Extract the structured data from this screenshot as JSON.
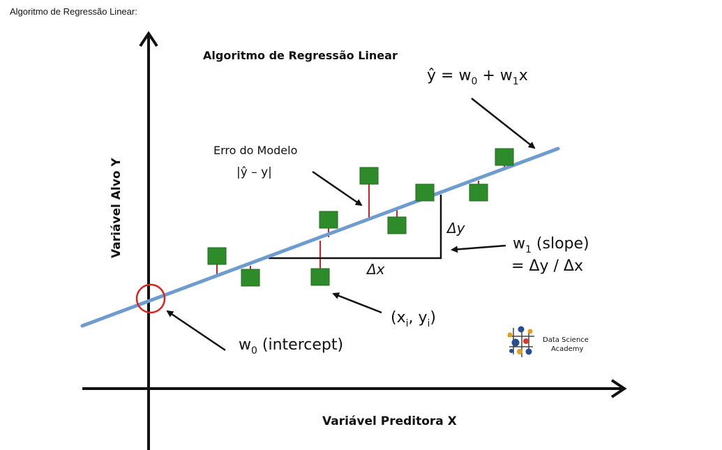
{
  "page_caption": "Algoritmo de Regressão Linear:",
  "diagram": {
    "title": "Algoritmo de Regressão Linear",
    "equation": {
      "yhat": "ŷ",
      "eq": " = w",
      "s0": "0",
      "plus": " + w",
      "s1": "1",
      "x": "x"
    },
    "x_axis_label": "Variável Preditora X",
    "y_axis_label": "Variável Alvo Y",
    "error_label": "Erro do Modelo",
    "error_formula": "|ŷ – y|",
    "delta_y": "Δy",
    "delta_x": "Δx",
    "slope_label": {
      "w": "w",
      "sub": "1",
      "rest": " (slope)",
      "line2": "= Δy / Δx"
    },
    "intercept_label": {
      "w": "w",
      "sub": "0",
      "rest": " (intercept)"
    },
    "point_label": {
      "open": "(x",
      "sub_i": "i",
      "mid": ", y",
      "sub_j": "i",
      "close": ")"
    },
    "logo_line1": "Data Science",
    "logo_line2": "Academy",
    "colors": {
      "line": "#6f9ccf",
      "point": "#2e8b2a",
      "error": "#d62020",
      "circle": "#dd2222"
    }
  }
}
